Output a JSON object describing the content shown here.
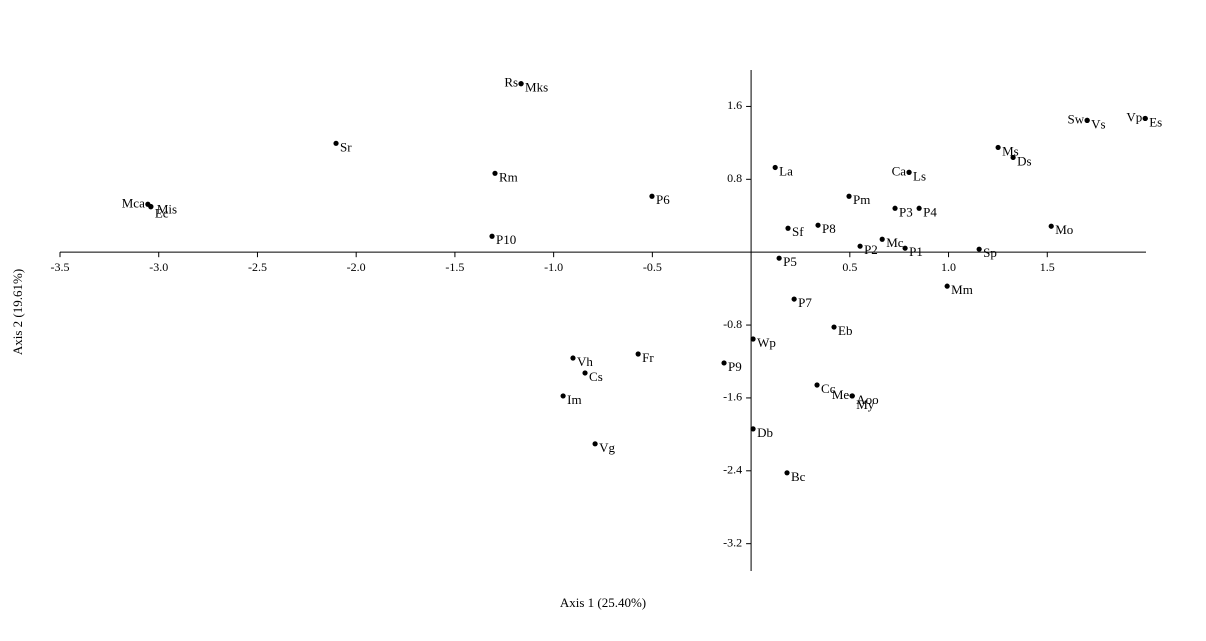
{
  "chart_data": {
    "type": "scatter",
    "x_label": "Axis 1 (25.40%)",
    "y_label": "Axis 2 (19.61%)",
    "xlim": [
      -3.5,
      2.0
    ],
    "ylim": [
      -3.5,
      2.0
    ],
    "xticks": [
      -3.5,
      {
        "value": -3.0,
        "label": "-3.0"
      },
      -2.5,
      {
        "value": -2.0,
        "label": "-2.0"
      },
      -1.5,
      {
        "value": -1.0,
        "label": "-1.0"
      },
      -0.5,
      0.5,
      {
        "value": 1.0,
        "label": "1.0"
      },
      1.5
    ],
    "yticks": [
      1.6,
      0.8,
      -0.8,
      -1.6,
      -2.4,
      -3.2
    ],
    "color": "#000000",
    "labels": [
      "Rs",
      "Mks",
      "Sr",
      "Rm",
      "Mca",
      "Mis",
      "Ec",
      "P6",
      "P10",
      "La",
      "Pm",
      "Ca",
      "Ls",
      "Ms",
      "Ds",
      "Sw",
      "Vs",
      "Vp",
      "Es",
      "P3",
      "P4",
      "Sf",
      "P8",
      "Mc",
      "P2",
      "P1",
      "Sp",
      "Mo",
      "P5",
      "Mm",
      "P7",
      "Eb",
      "Wp",
      "P9",
      "Cc",
      "Me",
      "Aoo",
      "My",
      "Db",
      "Bc",
      "Fr",
      "Vh",
      "Cs",
      "Im",
      "Vg"
    ],
    "x": [
      -1.165,
      -1.165,
      -2.102,
      -1.297,
      -3.055,
      -3.04,
      -3.04,
      -0.502,
      -1.312,
      0.122,
      0.496,
      0.8,
      0.8,
      1.251,
      1.327,
      1.702,
      1.702,
      1.996,
      1.996,
      0.729,
      0.851,
      0.187,
      0.339,
      0.664,
      0.552,
      0.78,
      1.155,
      1.52,
      0.142,
      0.993,
      0.218,
      0.42,
      0.01,
      -0.137,
      0.334,
      0.512,
      0.512,
      0.512,
      0.01,
      0.182,
      -0.572,
      -0.902,
      -0.841,
      -0.952,
      -0.79
    ],
    "y": [
      1.85,
      1.85,
      1.195,
      0.866,
      0.526,
      0.5,
      0.5,
      0.614,
      0.175,
      0.93,
      0.614,
      0.877,
      0.877,
      1.15,
      1.04,
      1.447,
      1.447,
      1.468,
      1.468,
      0.482,
      0.482,
      0.263,
      0.296,
      0.142,
      0.066,
      0.044,
      0.033,
      0.285,
      -0.066,
      -0.373,
      -0.515,
      -0.822,
      -0.953,
      -1.216,
      -1.458,
      -1.578,
      -1.578,
      -1.578,
      -1.94,
      -2.422,
      -1.118,
      -1.162,
      -1.326,
      -1.578,
      -2.104
    ]
  }
}
